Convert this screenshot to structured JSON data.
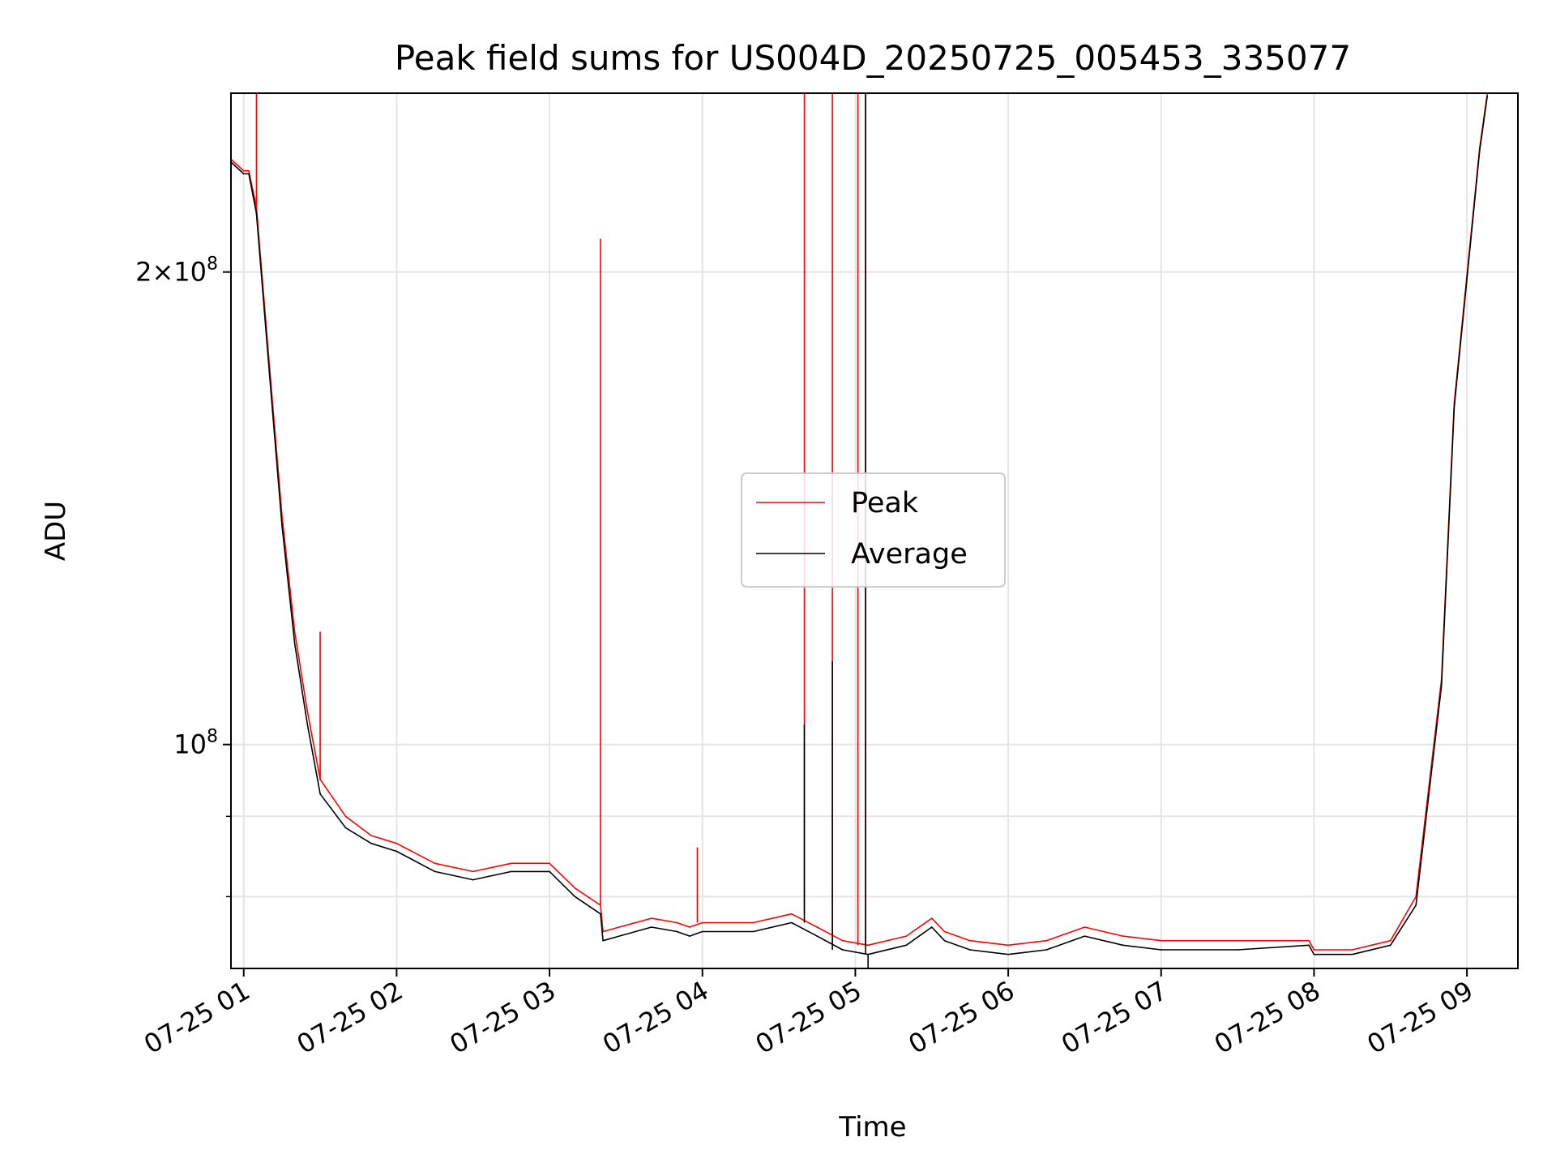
{
  "chart_data": {
    "type": "line",
    "title": "Peak field sums for US004D_20250725_005453_335077",
    "xlabel": "Time",
    "ylabel": "ADU",
    "y_scale": "log",
    "xlim": [
      "2025-07-25 00:55",
      "2025-07-25 09:20"
    ],
    "ylim": [
      72000000,
      260000000
    ],
    "grid": true,
    "legend_position": "center",
    "x_tick_labels": [
      "07-25 01",
      "07-25 02",
      "07-25 03",
      "07-25 04",
      "07-25 05",
      "07-25 06",
      "07-25 07",
      "07-25 08",
      "07-25 09"
    ],
    "y_tick_labels": [
      {
        "value": 200000000,
        "mantissa": "2",
        "exponent": "8"
      },
      {
        "value": 100000000,
        "mantissa": "",
        "exponent": "8"
      }
    ],
    "series": [
      {
        "name": "Peak",
        "color": "#ff0000",
        "x": [
          "2025-07-25 00:55",
          "2025-07-25 01:00",
          "2025-07-25 01:01",
          "2025-07-25 01:02",
          "2025-07-25 01:05",
          "2025-07-25 01:10",
          "2025-07-25 01:15",
          "2025-07-25 01:20",
          "2025-07-25 01:25",
          "2025-07-25 01:30",
          "2025-07-25 01:40",
          "2025-07-25 01:50",
          "2025-07-25 02:00",
          "2025-07-25 02:15",
          "2025-07-25 02:30",
          "2025-07-25 02:45",
          "2025-07-25 03:00",
          "2025-07-25 03:10",
          "2025-07-25 03:20",
          "2025-07-25 03:21",
          "2025-07-25 03:40",
          "2025-07-25 03:50",
          "2025-07-25 03:55",
          "2025-07-25 04:00",
          "2025-07-25 04:20",
          "2025-07-25 04:35",
          "2025-07-25 04:45",
          "2025-07-25 04:55",
          "2025-07-25 05:05",
          "2025-07-25 05:20",
          "2025-07-25 05:30",
          "2025-07-25 05:35",
          "2025-07-25 05:45",
          "2025-07-25 06:00",
          "2025-07-25 06:15",
          "2025-07-25 06:30",
          "2025-07-25 06:45",
          "2025-07-25 07:00",
          "2025-07-25 07:30",
          "2025-07-25 07:58",
          "2025-07-25 08:00",
          "2025-07-25 08:15",
          "2025-07-25 08:30",
          "2025-07-25 08:40",
          "2025-07-25 08:50",
          "2025-07-25 08:55",
          "2025-07-25 09:05",
          "2025-07-25 09:08"
        ],
        "y": [
          236000000,
          232000000,
          232000000,
          232000000,
          220000000,
          175000000,
          140000000,
          118000000,
          105000000,
          95000000,
          90000000,
          87500000,
          86500000,
          84000000,
          83000000,
          84000000,
          84000000,
          81000000,
          79000000,
          76000000,
          77500000,
          77000000,
          76500000,
          77000000,
          77000000,
          78000000,
          76500000,
          75000000,
          74500000,
          75500000,
          77500000,
          76000000,
          75000000,
          74500000,
          75000000,
          76500000,
          75500000,
          75000000,
          75000000,
          75000000,
          74000000,
          74000000,
          75000000,
          80000000,
          110000000,
          165000000,
          240000000,
          260000000
        ]
      },
      {
        "name": "Average",
        "color": "#000000",
        "x": [
          "2025-07-25 00:55",
          "2025-07-25 01:00",
          "2025-07-25 01:01",
          "2025-07-25 01:02",
          "2025-07-25 01:05",
          "2025-07-25 01:10",
          "2025-07-25 01:15",
          "2025-07-25 01:20",
          "2025-07-25 01:25",
          "2025-07-25 01:30",
          "2025-07-25 01:40",
          "2025-07-25 01:50",
          "2025-07-25 02:00",
          "2025-07-25 02:15",
          "2025-07-25 02:30",
          "2025-07-25 02:45",
          "2025-07-25 03:00",
          "2025-07-25 03:10",
          "2025-07-25 03:20",
          "2025-07-25 03:21",
          "2025-07-25 03:40",
          "2025-07-25 03:50",
          "2025-07-25 03:55",
          "2025-07-25 04:00",
          "2025-07-25 04:20",
          "2025-07-25 04:35",
          "2025-07-25 04:45",
          "2025-07-25 04:55",
          "2025-07-25 05:05",
          "2025-07-25 05:20",
          "2025-07-25 05:30",
          "2025-07-25 05:35",
          "2025-07-25 05:45",
          "2025-07-25 06:00",
          "2025-07-25 06:15",
          "2025-07-25 06:30",
          "2025-07-25 06:45",
          "2025-07-25 07:00",
          "2025-07-25 07:30",
          "2025-07-25 07:58",
          "2025-07-25 08:00",
          "2025-07-25 08:15",
          "2025-07-25 08:30",
          "2025-07-25 08:40",
          "2025-07-25 08:50",
          "2025-07-25 08:55",
          "2025-07-25 09:05",
          "2025-07-25 09:08"
        ],
        "y": [
          235000000,
          231000000,
          231000000,
          231000000,
          218000000,
          173000000,
          138000000,
          116000000,
          103000000,
          93000000,
          88500000,
          86500000,
          85500000,
          83000000,
          82000000,
          83000000,
          83000000,
          80000000,
          78000000,
          75000000,
          76500000,
          76000000,
          75500000,
          76000000,
          76000000,
          77000000,
          75500000,
          74000000,
          73500000,
          74500000,
          76500000,
          75000000,
          74000000,
          73500000,
          74000000,
          75500000,
          74500000,
          74000000,
          74000000,
          74500000,
          73500000,
          73500000,
          74500000,
          79000000,
          109000000,
          164000000,
          239000000,
          259000000
        ]
      }
    ],
    "spikes": [
      {
        "series": "Peak",
        "x": "2025-07-25 01:05",
        "y": 260000000
      },
      {
        "series": "Peak",
        "x": "2025-07-25 01:30",
        "y": 118000000
      },
      {
        "series": "Peak",
        "x": "2025-07-25 03:20",
        "y": 210000000
      },
      {
        "series": "Peak",
        "x": "2025-07-25 03:58",
        "y": 86000000
      },
      {
        "series": "Peak",
        "x": "2025-07-25 04:40",
        "y": 260000000
      },
      {
        "series": "Peak",
        "x": "2025-07-25 04:51",
        "y": 260000000
      },
      {
        "series": "Peak",
        "x": "2025-07-25 05:01",
        "y": 260000000
      },
      {
        "series": "Peak",
        "x": "2025-07-25 05:04",
        "y": 260000000
      },
      {
        "series": "Average",
        "x": "2025-07-25 04:40",
        "y": 103000000
      },
      {
        "series": "Average",
        "x": "2025-07-25 04:51",
        "y": 113000000
      },
      {
        "series": "Average",
        "x": "2025-07-25 05:04",
        "y": 260000000
      },
      {
        "series": "Average",
        "x": "2025-07-25 05:05",
        "y": 72000000
      }
    ]
  }
}
